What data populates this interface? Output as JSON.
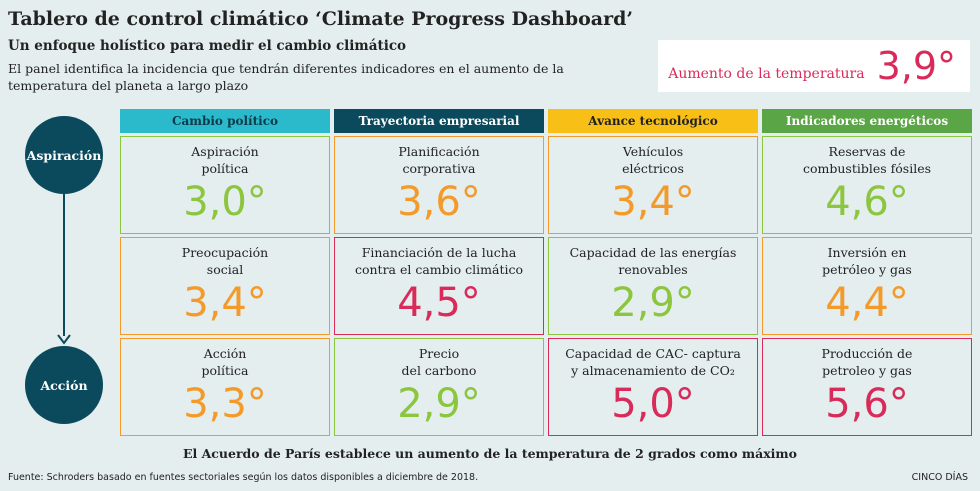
{
  "header": {
    "title": "Tablero de control climático ‘Climate Progress Dashboard’",
    "subtitle": "Un enfoque holístico para medir el cambio climático",
    "description": "El panel identifica la incidencia que tendrán diferentes indicadores en el aumento de la temperatura del planeta a largo plazo"
  },
  "temperature": {
    "label": "Aumento de la temperatura",
    "value": "3,9°",
    "color": "#d92b5a"
  },
  "stages": {
    "aspiration": "Aspiración",
    "action": "Acción"
  },
  "columns": [
    {
      "label": "Cambio político",
      "color": "#2bb9cc",
      "text_color": "#0b3a48"
    },
    {
      "label": "Trayectoria empresarial",
      "color": "#0b4a5d",
      "text_color": "#ffffff"
    },
    {
      "label": "Avance tecnológico",
      "color": "#f8c016",
      "text_color": "#222222"
    },
    {
      "label": "Indicadores energéticos",
      "color": "#5aa646",
      "text_color": "#ffffff"
    }
  ],
  "cells": [
    [
      {
        "label": "Aspiración\npolítica",
        "value": "3,0°",
        "color": "#8cc63f"
      },
      {
        "label": "Planificación\ncorporativa",
        "value": "3,6°",
        "color": "#f39a2b"
      },
      {
        "label": "Vehículos\neléctricos",
        "value": "3,4°",
        "color": "#f39a2b"
      },
      {
        "label": "Reservas de\ncombustibles fósiles",
        "value": "4,6°",
        "color": "#8cc63f"
      }
    ],
    [
      {
        "label": "Preocupación\nsocial",
        "value": "3,4°",
        "color": "#f39a2b"
      },
      {
        "label": "Financiación de la lucha\ncontra el cambio climático",
        "value": "4,5°",
        "color": "#d92b5a"
      },
      {
        "label": "Capacidad de las energías\nrenovables",
        "value": "2,9°",
        "color": "#8cc63f"
      },
      {
        "label": "Inversión en\npetróleo y gas",
        "value": "4,4°",
        "color": "#f39a2b"
      }
    ],
    [
      {
        "label": "Acción\npolítica",
        "value": "3,3°",
        "color": "#f39a2b"
      },
      {
        "label": "Precio\ndel carbono",
        "value": "2,9°",
        "color": "#8cc63f"
      },
      {
        "label": "Capacidad de CAC- captura\ny almacenamiento de CO₂",
        "value": "5,0°",
        "color": "#d92b5a"
      },
      {
        "label": "Producción de\npetroleo y gas",
        "value": "5,6°",
        "color": "#d92b5a"
      }
    ]
  ],
  "footer": {
    "main": "El Acuerdo de París establece un aumento de la temperatura de 2 grados como máximo",
    "source": "Fuente: Schroders basado en fuentes sectoriales según los datos disponibles a diciembre de 2018.",
    "brand": "CINCO DÍAS"
  }
}
